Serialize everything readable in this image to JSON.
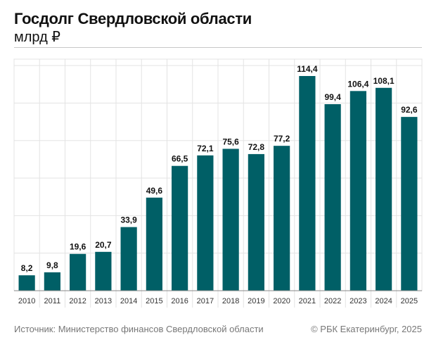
{
  "header": {
    "title": "Госдолг Свердловской области",
    "subtitle": "млрд ₽"
  },
  "footer": {
    "source": "Источник: Министерство финансов Свердловской области",
    "copyright": "© РБК Екатеринбург, 2025"
  },
  "colors": {
    "bar": "#005f66",
    "grid": "#e3e3e3",
    "axis": "#888888"
  },
  "chart_data": {
    "type": "bar",
    "title": "Госдолг Свердловской области",
    "subtitle": "млрд ₽",
    "xlabel": "",
    "ylabel": "",
    "categories": [
      "2010",
      "2011",
      "2012",
      "2013",
      "2014",
      "2015",
      "2016",
      "2017",
      "2018",
      "2019",
      "2020",
      "2021",
      "2022",
      "2023",
      "2024",
      "2025"
    ],
    "values": [
      8.2,
      9.8,
      19.6,
      20.7,
      33.9,
      49.6,
      66.5,
      72.1,
      75.6,
      72.8,
      77.2,
      114.4,
      99.4,
      106.4,
      108.1,
      92.6
    ],
    "value_labels": [
      "8,2",
      "9,8",
      "19,6",
      "20,7",
      "33,9",
      "49,6",
      "66,5",
      "72,1",
      "75,6",
      "72,8",
      "77,2",
      "114,4",
      "99,4",
      "106,4",
      "108,1",
      "92,6"
    ],
    "ylim": [
      0,
      120
    ],
    "grid": true,
    "legend": "none"
  }
}
